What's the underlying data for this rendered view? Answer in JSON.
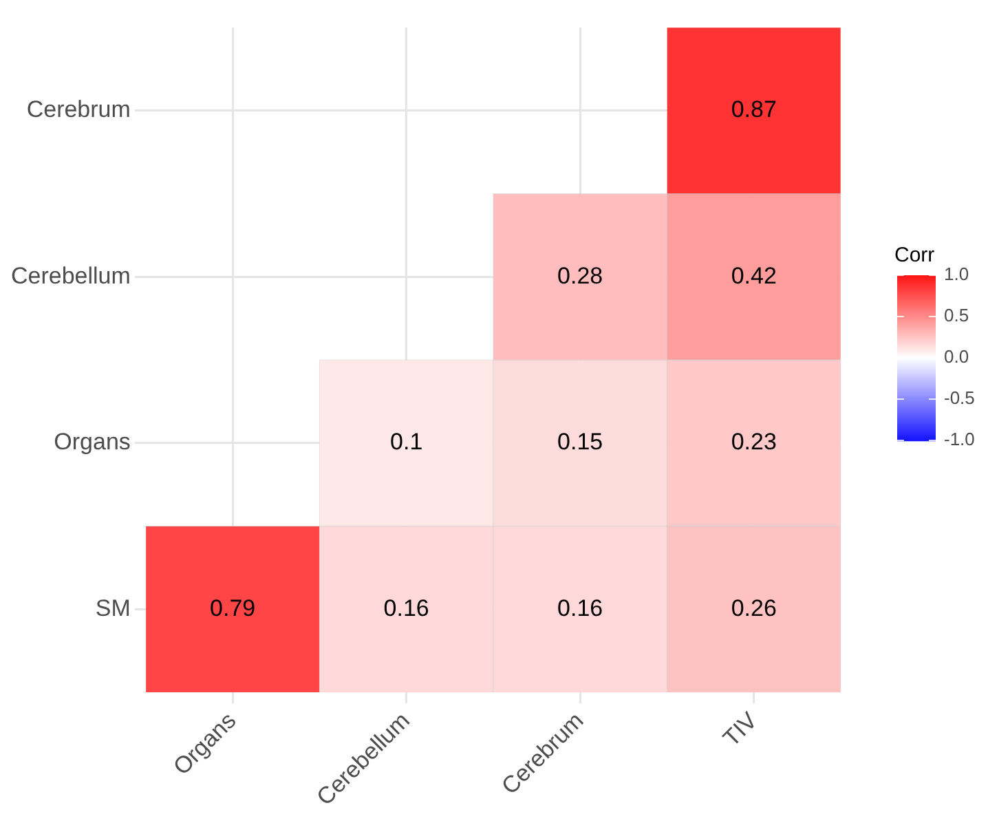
{
  "chart_data": {
    "type": "heatmap",
    "categories": [
      "Organs",
      "Cerebellum",
      "Cerebrum",
      "TIV"
    ],
    "y_categories": [
      "Cerebrum",
      "Cerebellum",
      "Organs",
      "SM"
    ],
    "cells": [
      [
        null,
        null,
        null,
        0.87
      ],
      [
        null,
        null,
        0.28,
        0.42
      ],
      [
        null,
        0.1,
        0.15,
        0.23
      ],
      [
        0.79,
        0.16,
        0.16,
        0.26
      ]
    ],
    "clabel": "Corr",
    "clim": [
      -1,
      1
    ],
    "cticks": [
      {
        "value": -1,
        "label": "-1.0"
      },
      -0.5,
      {
        "value": 0,
        "label": "0.0"
      },
      0.5,
      {
        "value": 1,
        "label": "1.0"
      }
    ],
    "data_labels": true,
    "grid": true
  }
}
